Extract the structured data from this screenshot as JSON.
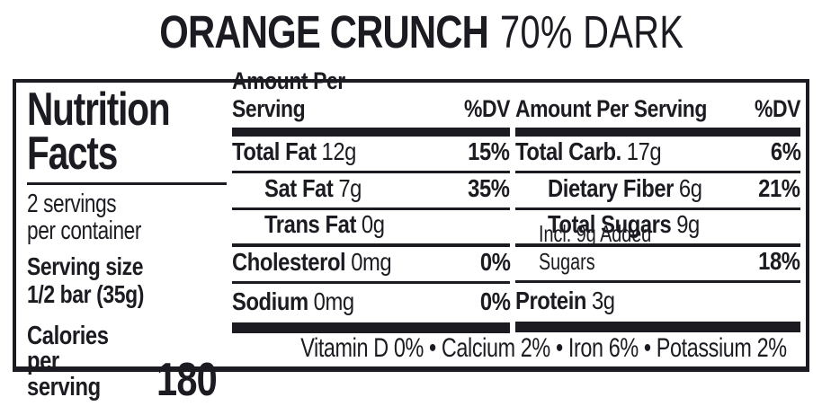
{
  "title": {
    "brand": "ORANGE CRUNCH",
    "variant": "70% DARK"
  },
  "panel": {
    "heading": "Nutrition\nFacts",
    "servings": "2 servings\nper container",
    "serving_size": "Serving size\n1/2 bar (35g)",
    "calories_label": "Calories\nper serving",
    "calories_value": "180",
    "amount_header": "Amount Per Serving",
    "dv_header": "%DV",
    "fat_rows": [
      {
        "name": "Total Fat",
        "amount": "12g",
        "dv": "15%"
      },
      {
        "name": "Sat Fat",
        "amount": "7g",
        "dv": "35%"
      },
      {
        "name": "Trans Fat",
        "amount": "0g",
        "dv": ""
      },
      {
        "name": "Cholesterol",
        "amount": "0mg",
        "dv": "0%"
      },
      {
        "name": "Sodium",
        "amount": "0mg",
        "dv": "0%"
      }
    ],
    "carb_rows": [
      {
        "name": "Total Carb.",
        "amount": "17g",
        "dv": "6%"
      },
      {
        "name": "Dietary Fiber",
        "amount": "6g",
        "dv": "21%"
      },
      {
        "name": "Total Sugars",
        "amount": "9g",
        "dv": ""
      },
      {
        "name": "",
        "amount": "Incl. 9g Added Sugars",
        "dv": "18%"
      },
      {
        "name": "Protein",
        "amount": "3g",
        "dv": ""
      }
    ],
    "micronutrients": "Vitamin D 0% • Calcium 2% • Iron 6% • Potassium 2%",
    "ink_color": "#1c1b21"
  }
}
